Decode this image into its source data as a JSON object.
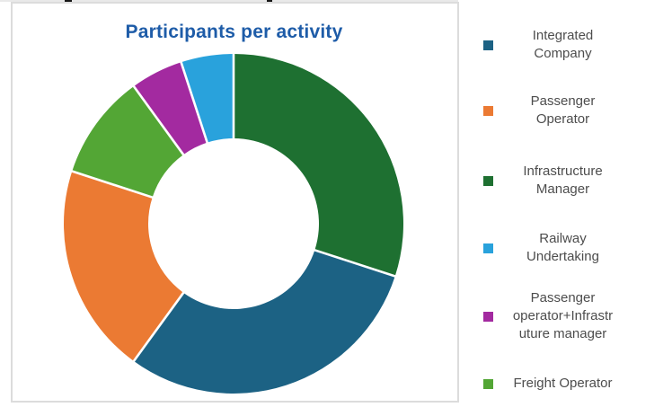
{
  "chart_box": {
    "border_color": "#dcdcdc",
    "background": "#ffffff"
  },
  "chart_data": {
    "type": "donut",
    "title": "Participants per activity",
    "title_color": "#1e5ca8",
    "legend_position": "right",
    "donut_hole_ratio": 0.5,
    "start_angle_deg": 0,
    "direction": "clockwise",
    "series": [
      {
        "name": "Integrated Company",
        "percent": 30,
        "color": "#1c6284"
      },
      {
        "name": "Passenger Operator",
        "percent": 20,
        "color": "#eb7a33"
      },
      {
        "name": "Infrastructure Manager",
        "percent": 30,
        "color": "#1e7031"
      },
      {
        "name": "Railway Undertaking",
        "percent": 5,
        "color": "#29a2dc"
      },
      {
        "name": "Passenger operator+Infrastruture manager",
        "percent": 5,
        "color": "#a32aa0"
      },
      {
        "name": "Freight Operator",
        "percent": 10,
        "color": "#53a635"
      }
    ],
    "slice_draw_order_clockwise_from_top": [
      "Infrastructure Manager",
      "Integrated Company",
      "Passenger Operator",
      "Freight Operator",
      "Passenger operator+Infrastruture manager",
      "Railway Undertaking"
    ],
    "separator_color": "#ffffff"
  },
  "legend": {
    "text_color": "#4d4d4d",
    "items": [
      {
        "series": "Integrated Company",
        "lines": [
          "Integrated",
          "Company"
        ],
        "color": "#1c6284"
      },
      {
        "series": "Passenger Operator",
        "lines": [
          "Passenger",
          "Operator"
        ],
        "color": "#eb7a33"
      },
      {
        "series": "Infrastructure Manager",
        "lines": [
          "Infrastructure",
          "Manager"
        ],
        "color": "#1e7031"
      },
      {
        "series": "Railway Undertaking",
        "lines": [
          "Railway",
          "Undertaking"
        ],
        "color": "#29a2dc"
      },
      {
        "series": "Passenger operator+Infrastruture manager",
        "lines": [
          "Passenger",
          "operator+Infrastr",
          "uture manager"
        ],
        "color": "#a32aa0"
      },
      {
        "series": "Freight Operator",
        "lines": [
          "Freight Operator"
        ],
        "color": "#53a635"
      }
    ]
  }
}
